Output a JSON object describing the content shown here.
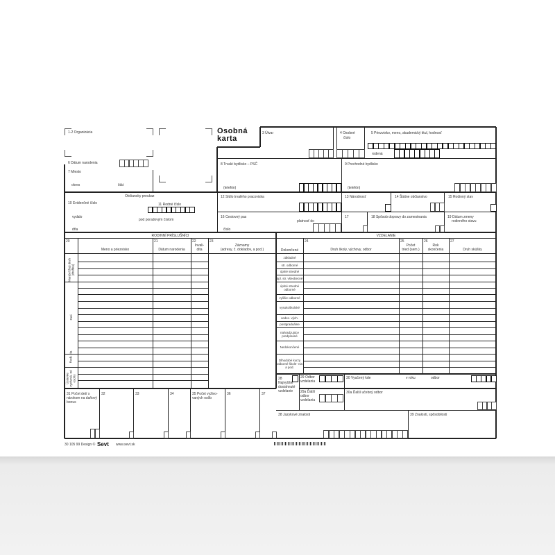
{
  "title": {
    "line1": "Osobná",
    "line2": "karta"
  },
  "header": {
    "f1_2": "1-2 Organizácia",
    "f3": "3 Útvar",
    "f4a": "4 Osobné",
    "f4b": "číslo",
    "f5": "5 Priezvisko, meno, akademický titul, hodnosť",
    "rodena": "rodená",
    "f6": "6 Dátum narodenia",
    "f7": "7 Miesto",
    "okres": "okres",
    "stat": "štát",
    "f8": "8 Trvalé bydlisko – PSČ",
    "telefon8": "(telefón)",
    "f9": "9 Prechodné bydlisko",
    "telefon9": "(telefón)",
    "op": "Občiansky preukaz",
    "f10": "10 Evidenčné číslo",
    "f11": "11 Rodné číslo",
    "vydalo": "vydalo",
    "pod": "pod poradovým číslom",
    "dna": "dňa",
    "f12": "12 Sídlo trvalého pracoviska",
    "f13": "13 Národnosť",
    "f14": "14 Štátne občianstvo",
    "f15": "15 Rodinný stav",
    "f16": "16 Cestovný pas",
    "cislo": "číslo",
    "platnost": "platnosť do",
    "f17": "17",
    "f18": "18 Spôsob dopravy do zamestnania",
    "f19a": "19 Dátum zmeny",
    "f19b": "rodinného stavu"
  },
  "family": {
    "section": "RODINNÍ PRÍSLUŠNÍCI",
    "c20n": "20",
    "c20": "Meno a priezvisko",
    "c21n": "21",
    "c21": "Dátum narodenia",
    "c22n": "22",
    "c22a": "Invali-",
    "c22b": "dita",
    "c23n": "23",
    "c23a": "Záznamy",
    "c23b": "(adresy, č. dokladov, a pod.)",
    "groups": [
      "Manžel (ka) druh (druhka)",
      "Deti",
      "Rodi- čia",
      "Ústavne vychová- né osoby"
    ]
  },
  "education": {
    "section": "VZDELANIE",
    "dokoncene": "Dokončené",
    "c24n": "24",
    "c24": "Druh školy, výchovy, odbor",
    "c25n": "25",
    "c25a": "Počet",
    "c25b": "tried (sem.)",
    "c26n": "26",
    "c26a": "Rok",
    "c26b": "skončenia",
    "c27n": "27",
    "c27": "Druh skúšky",
    "levels": [
      "základné",
      "str. odborné",
      "úplné stredné",
      "úpl. str. všeobecné",
      "úplné stredné odborné",
      "vyššie odborné",
      "vysokoškolské",
      "vedec. vých.",
      "postgraduálne",
      "nahradzujúce predpísané",
      "Nedokončené",
      "Dlhodobé kurzy odborné škole- nia a pod."
    ]
  },
  "bottom": {
    "f28n": "28",
    "f28": "Najvyššie dosiahnuté vzdelanie",
    "f29": "29 Odbor vzdelania",
    "f29a": "29a Ďalší odbor vzdelania",
    "f30": "30 Vyučený kde",
    "vroku": "v roku",
    "odbor": "odbor",
    "f30a": "30a Ďalší učebný odbor",
    "f31": "31 Počet detí s nárokom na daňový bonus",
    "f32": "32",
    "f33": "33",
    "f34": "34",
    "f35": "35 Počet vyživo- vaných osôb",
    "f36": "36",
    "f37": "37",
    "f38": "38 Jazykové znalosti",
    "f39": "39 Znalosti, spôsobilosti"
  },
  "footer": {
    "code": "30  105 99  Design ©",
    "brand": "Sevt",
    "url": "www.sevt.sk"
  }
}
